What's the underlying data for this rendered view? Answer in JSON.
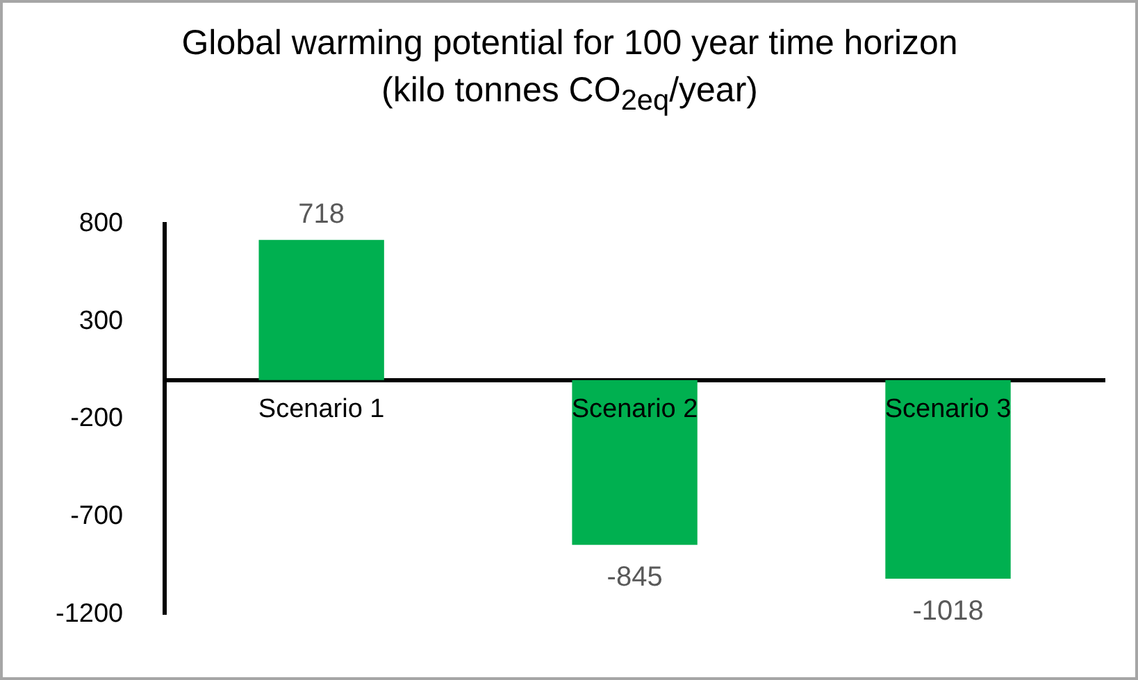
{
  "chart_data": {
    "type": "bar",
    "title": "Global warming potential for 100 year time horizon (kilo tonnes CO$_{2eq}$/year)",
    "categories": [
      "Scenario 1",
      "Scenario 2",
      "Scenario 3"
    ],
    "values": [
      718,
      -845,
      -1018
    ],
    "color": "#00b050",
    "ylim": [
      -1200,
      800
    ],
    "yticks": [
      800,
      300,
      -200,
      -700,
      -1200
    ],
    "grid": false,
    "data_labels": true
  }
}
